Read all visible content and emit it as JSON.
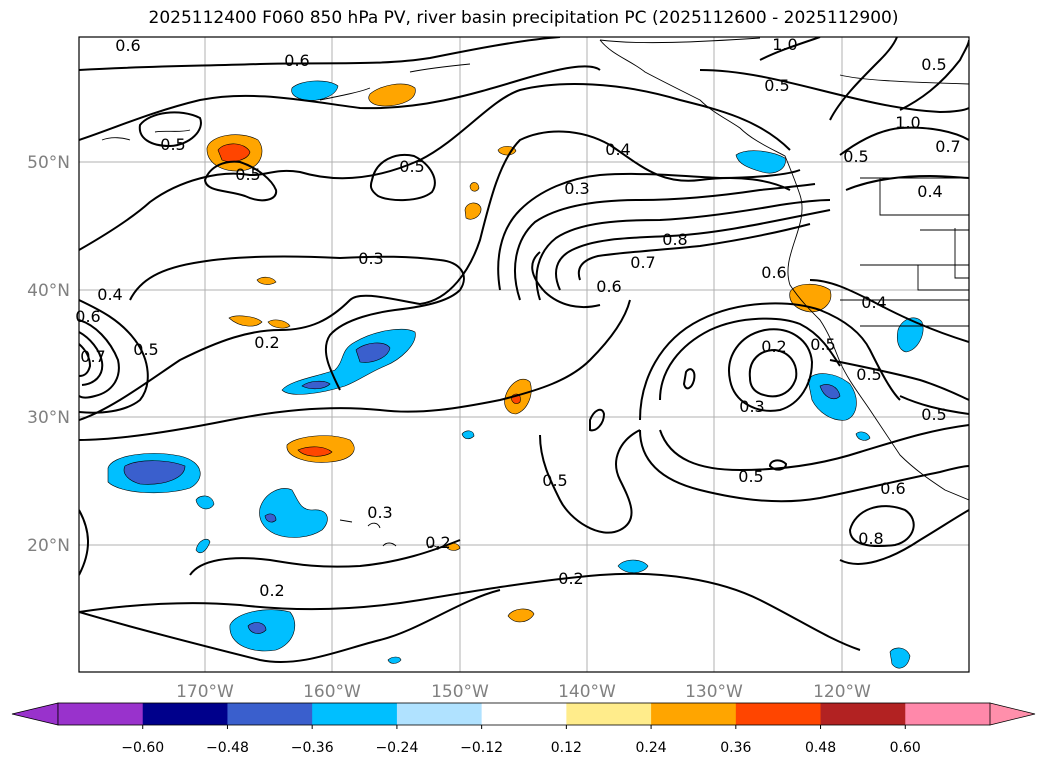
{
  "title": "2025112400 F060 850 hPa PV, river basin precipitation PC (2025112600 - 2025112900)",
  "lat_labels": [
    "50°N",
    "40°N",
    "30°N",
    "20°N"
  ],
  "lon_labels": [
    "170°W",
    "160°W",
    "150°W",
    "140°W",
    "130°W",
    "120°W"
  ],
  "contour_labels": [
    "0.6",
    "0.6",
    "0.5",
    "0.5",
    "0.5",
    "0.4",
    "0.3",
    "0.3",
    "0.8",
    "0.7",
    "0.6",
    "0.6",
    "0.4",
    "0.6",
    "0.7",
    "0.5",
    "0.2",
    "0.2",
    "0.3",
    "0.3",
    "0.2",
    "0.2",
    "0.2",
    "0.5",
    "0.5",
    "0.6",
    "0.8",
    "0.5",
    "1.0",
    "1.0",
    "0.7",
    "0.5",
    "0.5",
    "0.4",
    "0.4",
    "0.5",
    "0.5"
  ],
  "colorbar": {
    "ticks": [
      "−0.60",
      "−0.48",
      "−0.36",
      "−0.24",
      "−0.12",
      "0.12",
      "0.24",
      "0.36",
      "0.48",
      "0.60"
    ],
    "colors": [
      "#9932cc",
      "#00008b",
      "#3a5fcd",
      "#00bfff",
      "#b0e2ff",
      "#ffffff",
      "#ffec8b",
      "#ffa500",
      "#ff4500",
      "#b22222",
      "#ff88aa",
      "#ff8fab"
    ]
  }
}
